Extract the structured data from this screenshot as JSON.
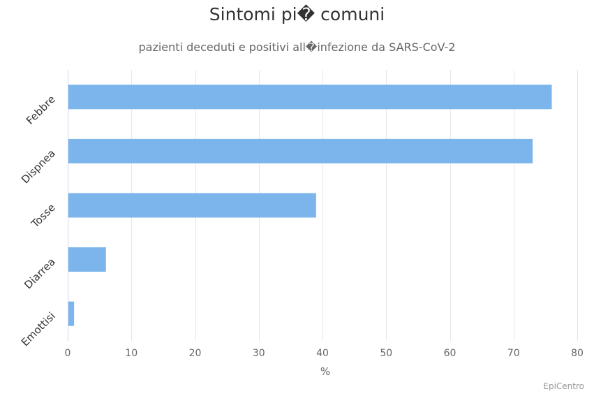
{
  "chart_data": {
    "type": "bar",
    "orientation": "horizontal",
    "title": "Sintomi pi� comuni",
    "subtitle": "pazienti deceduti e positivi all�infezione da SARS-CoV-2",
    "categories": [
      "Febbre",
      "Dispnea",
      "Tosse",
      "Diarrea",
      "Emottisi"
    ],
    "values": [
      76,
      73,
      39,
      6,
      1
    ],
    "xlabel": "%",
    "ylabel": "",
    "xlim": [
      0,
      80
    ],
    "xticks": [
      0,
      10,
      20,
      30,
      40,
      50,
      60,
      70,
      80
    ],
    "grid": true,
    "legend": "none",
    "bar_color": "#7cb5ec",
    "grid_color": "#e6e6e6",
    "axis_color": "#ccd6eb",
    "label_color": "#666666"
  },
  "credits": "EpiCentro"
}
